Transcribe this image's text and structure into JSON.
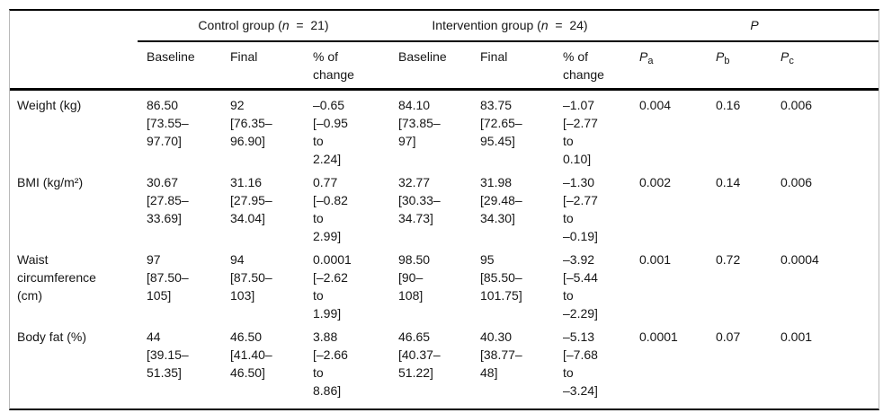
{
  "table": {
    "groups": {
      "control": {
        "prefix": "Control group (",
        "n": "n",
        "suffix": "  =  21)"
      },
      "intervention": {
        "prefix": "Intervention group (",
        "n": "n",
        "suffix": "  =  24)"
      },
      "p": "P"
    },
    "columns": {
      "baseline": "Baseline",
      "final": "Final",
      "pct_change": "% of\nchange",
      "p_sym": "P",
      "pa_sub": "a",
      "pb_sub": "b",
      "pc_sub": "c"
    },
    "rows": [
      {
        "label": "Weight (kg)",
        "cells": [
          "86.50\n[73.55–\n97.70]",
          "92\n[76.35–\n96.90]",
          "–0.65\n[–0.95\nto\n2.24]",
          "84.10\n[73.85–\n97]",
          "83.75\n[72.65–\n95.45]",
          "–1.07\n[–2.77\nto\n0.10]",
          "0.004",
          "0.16",
          "0.006"
        ]
      },
      {
        "label": "BMI (kg/m²)",
        "cells": [
          "30.67\n[27.85–\n33.69]",
          "31.16\n[27.95–\n34.04]",
          "0.77\n[–0.82\nto\n2.99]",
          "32.77\n[30.33–\n34.73]",
          "31.98\n[29.48–\n34.30]",
          "–1.30\n[–2.77\nto\n–0.19]",
          "0.002",
          "0.14",
          "0.006"
        ]
      },
      {
        "label": "Waist\ncircumference\n(cm)",
        "cells": [
          "97\n[87.50–\n105]",
          "94\n[87.50–\n103]",
          "0.0001\n[–2.62\nto\n1.99]",
          "98.50\n[90–\n108]",
          "95\n[85.50–\n101.75]",
          "–3.92\n[–5.44\nto\n–2.29]",
          "0.001",
          "0.72",
          "0.0004"
        ]
      },
      {
        "label": "Body fat (%)",
        "cells": [
          "44\n[39.15–\n51.35]",
          "46.50\n[41.40–\n46.50]",
          "3.88\n[–2.66\nto\n8.86]",
          "46.65\n[40.37–\n51.22]",
          "40.30\n[38.77–\n48]",
          "–5.13\n[–7.68\nto\n–3.24]",
          "0.0001",
          "0.07",
          "0.001"
        ]
      }
    ]
  }
}
